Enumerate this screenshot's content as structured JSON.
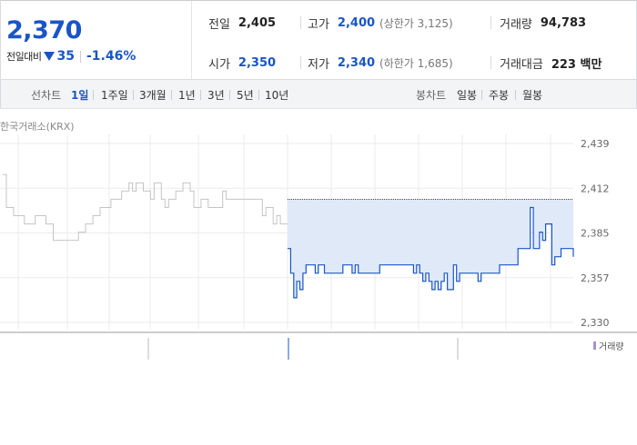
{
  "quote": {
    "price": "2,370",
    "change_label": "전일대비",
    "change_value": "35",
    "change_pct": "-1.46%",
    "prev_close_label": "전일",
    "prev_close": "2,405",
    "high_label": "고가",
    "high": "2,400",
    "upper_limit": "(상한가 3,125)",
    "volume_label": "거래량",
    "volume": "94,783",
    "open_label": "시가",
    "open": "2,350",
    "low_label": "저가",
    "low": "2,340",
    "lower_limit": "(하한가 1,685)",
    "amount_label": "거래대금",
    "amount": "223 백만"
  },
  "tabs": {
    "line_label": "선차트",
    "line_items": [
      "1일",
      "1주일",
      "3개월",
      "1년",
      "3년",
      "5년",
      "10년"
    ],
    "line_active": "1일",
    "candle_label": "봉차트",
    "candle_items": [
      "일봉",
      "주봉",
      "월봉"
    ]
  },
  "chart": {
    "source": "한국거래소(KRX)",
    "volume_legend": "거래량",
    "colors": {
      "accent": "#1a55c7",
      "prev_line": "#c4c4c4",
      "fill": "#dfe9f7",
      "grid": "#ebebeb"
    }
  },
  "chart_data": {
    "type": "line",
    "ylim": [
      2330,
      2439
    ],
    "yticks": [
      "2,439",
      "2,412",
      "2,385",
      "2,357",
      "2,330"
    ],
    "reference_line": 2405,
    "series": [
      {
        "values": [
          2420,
          2400,
          2400,
          2395,
          2395,
          2395,
          2390,
          2390,
          2390,
          2395,
          2395,
          2395,
          2390,
          2390,
          2380,
          2380,
          2380,
          2380,
          2380,
          2380,
          2380,
          2385,
          2385,
          2390,
          2390,
          2395,
          2395,
          2400,
          2400,
          2400,
          2405,
          2405,
          2405,
          2410,
          2410,
          2415,
          2410,
          2415,
          2415,
          2410,
          2410,
          2405,
          2415,
          2415,
          2405,
          2400,
          2405,
          2405,
          2410,
          2410,
          2415,
          2415,
          2410,
          2400,
          2400,
          2405,
          2405,
          2400,
          2400,
          2400,
          2400,
          2410,
          2405,
          2405,
          2405,
          2405,
          2405,
          2405,
          2405,
          2405,
          2405,
          2405,
          2395,
          2400,
          2400,
          2390,
          2395,
          2390,
          2390,
          2390
        ]
      },
      {
        "values": [
          2375,
          2360,
          2345,
          2355,
          2350,
          2360,
          2365,
          2365,
          2365,
          2360,
          2365,
          2365,
          2360,
          2360,
          2360,
          2360,
          2360,
          2360,
          2365,
          2365,
          2365,
          2360,
          2365,
          2360,
          2360,
          2360,
          2360,
          2360,
          2360,
          2360,
          2365,
          2365,
          2365,
          2365,
          2365,
          2365,
          2365,
          2365,
          2365,
          2365,
          2365,
          2360,
          2365,
          2360,
          2355,
          2360,
          2355,
          2350,
          2355,
          2350,
          2355,
          2360,
          2350,
          2350,
          2365,
          2355,
          2360,
          2360,
          2360,
          2360,
          2360,
          2360,
          2355,
          2360,
          2360,
          2360,
          2360,
          2360,
          2360,
          2365,
          2365,
          2365,
          2365,
          2365,
          2365,
          2375,
          2375,
          2375,
          2375,
          2400,
          2375,
          2375,
          2385,
          2380,
          2390,
          2390,
          2365,
          2370,
          2370,
          2375,
          2375,
          2375,
          2375,
          2370
        ],
        "close": 2370
      }
    ]
  }
}
